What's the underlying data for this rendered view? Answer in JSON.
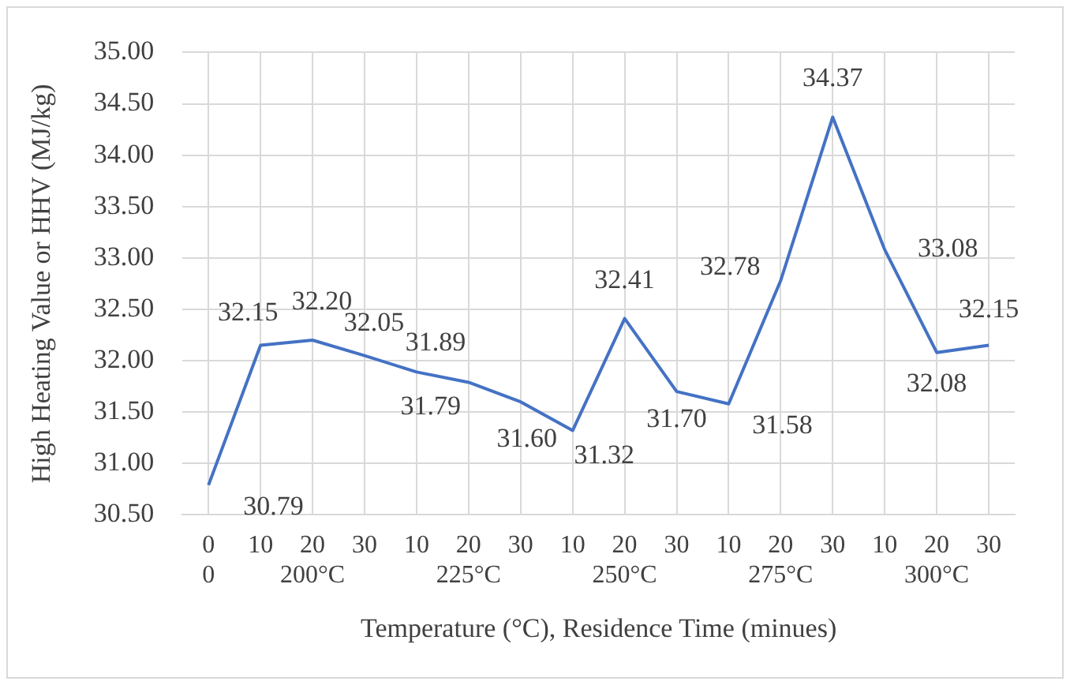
{
  "chart_data": {
    "type": "line",
    "xlabel": "Temperature (°C), Residence Time (minues)",
    "ylabel": "High Heating Value or HHV (MJ/kg)",
    "categories": [
      "0\n0",
      "10",
      "20\n200°C",
      "30",
      "10",
      "20\n225°C",
      "30",
      "10",
      "20\n250°C",
      "30",
      "10",
      "20\n275°C",
      "30",
      "10",
      "20\n300°C",
      "30"
    ],
    "series": [
      {
        "color": "#4472c4",
        "values": [
          30.79,
          32.15,
          32.2,
          32.05,
          31.89,
          31.79,
          31.6,
          31.32,
          32.41,
          31.7,
          31.58,
          32.78,
          34.37,
          33.08,
          32.08,
          32.15
        ],
        "value_labels": [
          "30.79",
          "32.15",
          "32.20",
          "32.05",
          "31.89",
          "31.79",
          "31.60",
          "31.32",
          "32.41",
          "31.70",
          "31.58",
          "32.78",
          "34.37",
          "33.08",
          "32.08",
          "32.15"
        ]
      }
    ],
    "ylim": [
      30.5,
      35
    ],
    "yticks": [
      {
        "value": 30.5,
        "label": "30.50"
      },
      {
        "value": 31,
        "label": "31.00"
      },
      {
        "value": 31.5,
        "label": "31.50"
      },
      {
        "value": 32,
        "label": "32.00"
      },
      {
        "value": 32.5,
        "label": "32.50"
      },
      {
        "value": 33,
        "label": "33.00"
      },
      {
        "value": 33.5,
        "label": "33.50"
      },
      {
        "value": 34,
        "label": "34.00"
      },
      {
        "value": 34.5,
        "label": "34.50"
      },
      {
        "value": 35,
        "label": "35.00"
      }
    ],
    "grid": true,
    "legend": false,
    "marker": "none",
    "line_style": "solid"
  }
}
